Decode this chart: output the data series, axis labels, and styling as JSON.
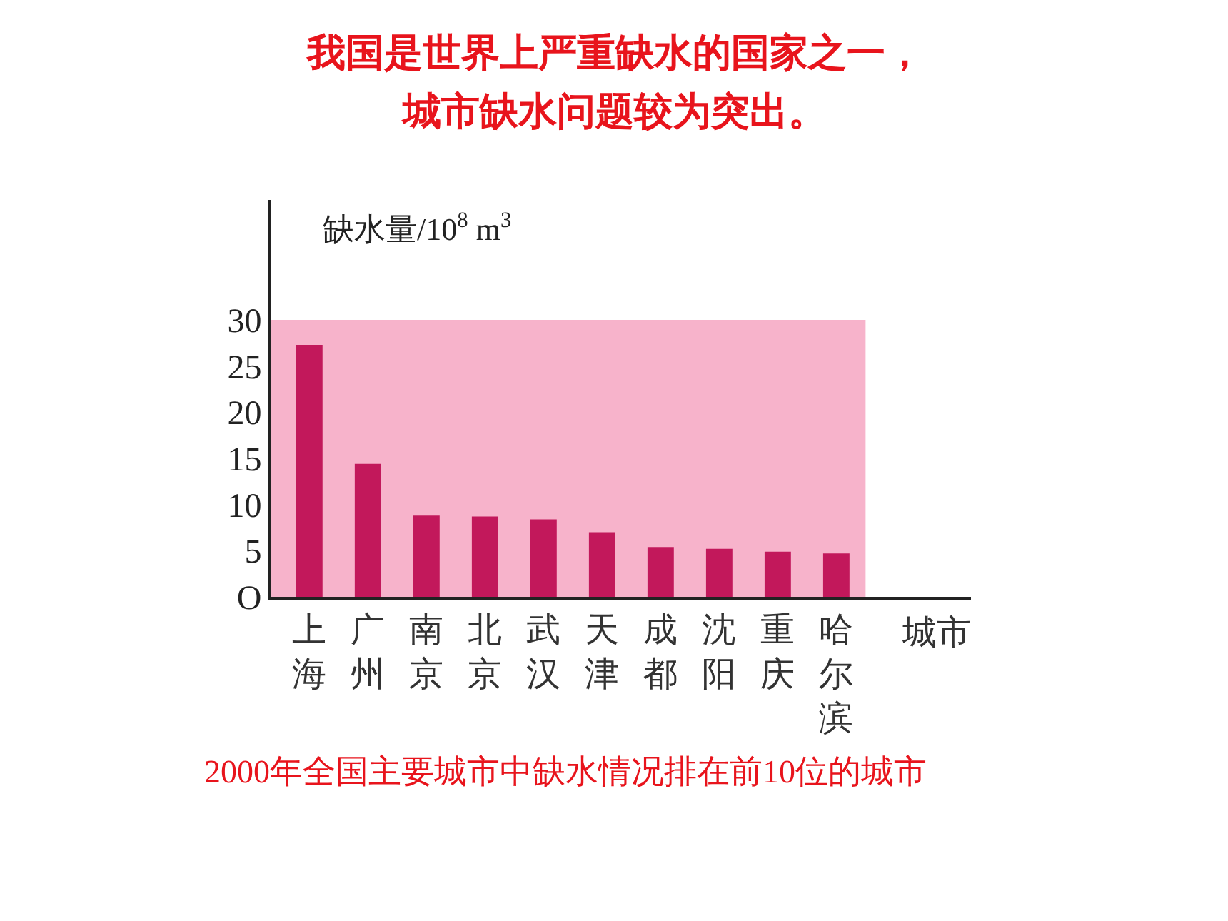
{
  "chart_data": {
    "type": "bar",
    "title": "我国是世界上严重缺水的国家之一，",
    "subtitle": "城市缺水问题较为突出。",
    "ylabel": "缺水量/10$^{8}$ m$^{3}$",
    "xlabel": "城市",
    "categories": [
      "上海",
      "广州",
      "南京",
      "北京",
      "武汉",
      "天津",
      "成都",
      "沈阳",
      "重庆",
      "哈尔滨"
    ],
    "values": [
      27.3,
      14.4,
      8.8,
      8.7,
      8.4,
      7.0,
      5.4,
      5.2,
      4.9,
      4.7
    ],
    "color": "#c2185b",
    "ylim": [
      0,
      43
    ],
    "yticks": [
      {
        "value": 0,
        "label": "O"
      },
      5,
      10,
      15,
      20,
      25,
      30
    ],
    "bands": [
      {
        "axis": "y",
        "from": 0,
        "to": 30,
        "color": "#f7b3cb"
      }
    ],
    "annotations": [
      "2000年全国主要城市中缺水情况排在前10位的城市"
    ],
    "grid": false
  }
}
